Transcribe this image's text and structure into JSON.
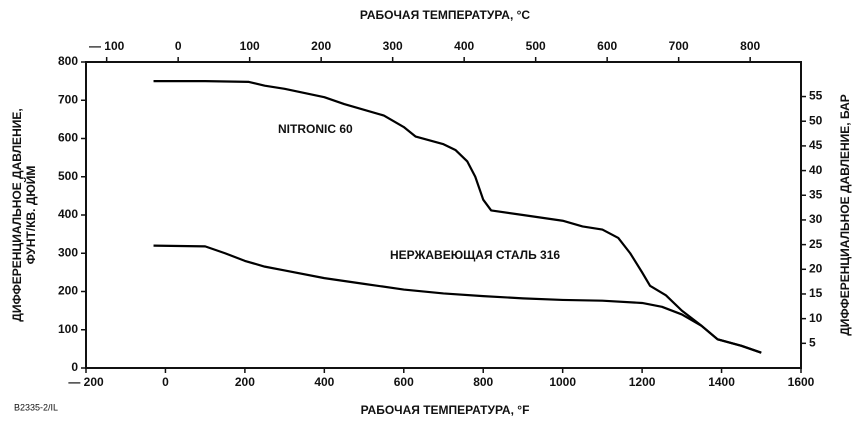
{
  "chart_data": {
    "type": "line",
    "xlabel": "РАБОЧАЯ ТЕМПЕРАТУРА, °F",
    "x2label": "РАБОЧАЯ ТЕМПЕРАТУРА, °C",
    "ylabel": [
      "ДИФФЕРЕНЦИАЛЬНОЕ ДАВЛЕНИЕ,",
      "ФУНТ/КВ. ДЮЙМ"
    ],
    "y2label": "ДИФФЕРЕНЦИАЛЬНОЕ ДАВЛЕНИЕ, БАР",
    "footnote": "B2335-2/IL",
    "xlim": [
      -200,
      1600
    ],
    "xticks": [
      {
        "value": -200,
        "label": "— 200"
      },
      0,
      200,
      400,
      600,
      800,
      1000,
      1200,
      1400,
      1600
    ],
    "x2lim": [
      -128.9,
      871.1
    ],
    "x2ticks": [
      {
        "value": -100,
        "label": "— 100"
      },
      0,
      100,
      200,
      300,
      400,
      500,
      600,
      700,
      800
    ],
    "ylim": [
      0,
      800
    ],
    "yticks": [
      0,
      100,
      200,
      300,
      400,
      500,
      600,
      700,
      800
    ],
    "y2lim": [
      0,
      62
    ],
    "y2ticks": [
      5,
      10,
      15,
      20,
      25,
      30,
      35,
      40,
      45,
      50,
      55
    ],
    "series": [
      {
        "name": "NITRONIC 60",
        "color": "#000000",
        "x": [
          -30,
          100,
          210,
          250,
          300,
          400,
          450,
          550,
          600,
          630,
          700,
          730,
          760,
          780,
          800,
          820,
          900,
          1000,
          1050,
          1100,
          1140,
          1170,
          1200,
          1220,
          1260,
          1300,
          1350,
          1390,
          1450,
          1500
        ],
        "values": [
          750,
          750,
          748,
          738,
          730,
          708,
          690,
          660,
          630,
          605,
          585,
          570,
          540,
          500,
          440,
          412,
          400,
          385,
          370,
          362,
          340,
          300,
          250,
          215,
          190,
          150,
          110,
          75,
          58,
          40
        ]
      },
      {
        "name": "НЕРЖАВЕЮЩАЯ СТАЛЬ 316",
        "color": "#000000",
        "x": [
          -30,
          100,
          150,
          200,
          250,
          300,
          400,
          500,
          600,
          700,
          800,
          900,
          1000,
          1100,
          1200,
          1250,
          1300,
          1350,
          1390,
          1450,
          1500
        ],
        "values": [
          320,
          318,
          300,
          280,
          265,
          255,
          235,
          220,
          205,
          195,
          188,
          182,
          178,
          176,
          170,
          160,
          140,
          110,
          75,
          58,
          40
        ]
      }
    ]
  }
}
